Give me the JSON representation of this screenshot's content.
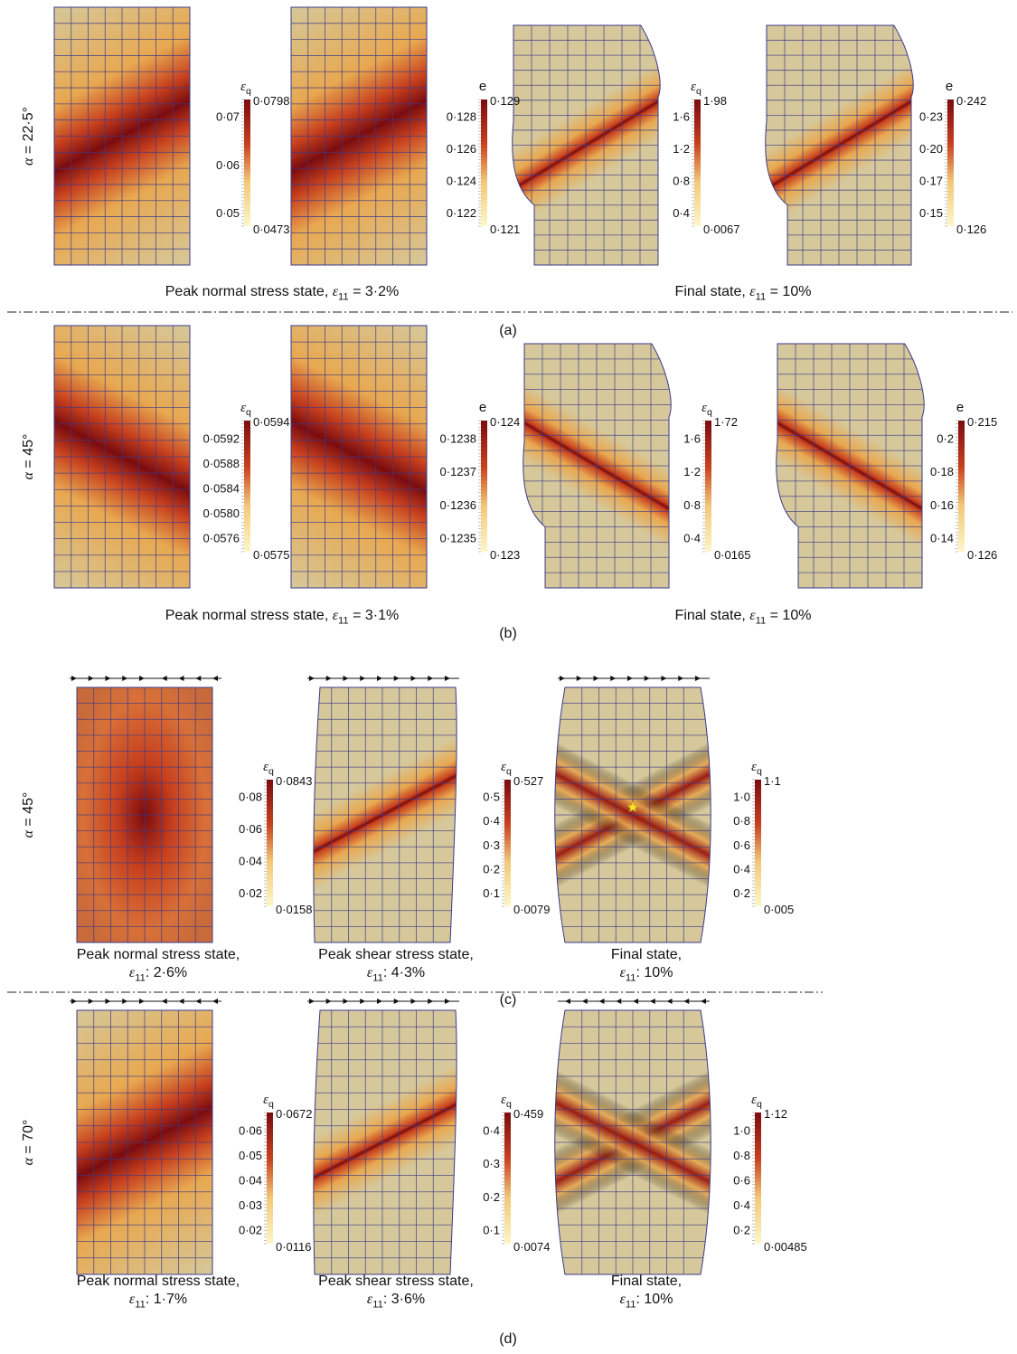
{
  "palette": {
    "base": "#d6c89a",
    "light": "#fdf6c8",
    "mid": "#e8a850",
    "strong": "#c7401e",
    "dark": "#7a0c10",
    "mesh": "#3a3a8a"
  },
  "panels": [
    {
      "label": "(a)",
      "row_label": "α = 22·5°",
      "group_captions": [
        {
          "text": "Peak normal stress state, ε11 = 3·2%"
        },
        {
          "text": "Final state, ε11 = 10%"
        }
      ],
      "plots": [
        {
          "shape": "rect",
          "band": "diag-up-wide",
          "colorbar": {
            "symbol": "εq",
            "max": "0·0798",
            "min": "0·0473",
            "ticks": [
              "0·07",
              "0·06",
              "0·05"
            ]
          }
        },
        {
          "shape": "rect",
          "band": "diag-up-wide",
          "colorbar": {
            "symbol": "e",
            "max": "0·129",
            "min": "0·121",
            "ticks": [
              "0·128",
              "0·126",
              "0·124",
              "0·122"
            ]
          }
        },
        {
          "shape": "deformed",
          "band": "diag-up",
          "colorbar": {
            "symbol": "εq",
            "max": "1·98",
            "min": "0·0067",
            "ticks": [
              "1·6",
              "1·2",
              "0·8",
              "0·4"
            ]
          }
        },
        {
          "shape": "deformed",
          "band": "diag-up",
          "colorbar": {
            "symbol": "e",
            "max": "0·242",
            "min": "0·126",
            "ticks": [
              "0·23",
              "0·20",
              "0·17",
              "0·15"
            ]
          }
        }
      ]
    },
    {
      "label": "(b)",
      "row_label": "α = 45°",
      "group_captions": [
        {
          "text": "Peak normal stress state, ε11 = 3·1%"
        },
        {
          "text": "Final state, ε11 = 10%"
        }
      ],
      "plots": [
        {
          "shape": "rect",
          "band": "diag-down-wide",
          "colorbar": {
            "symbol": "εq",
            "max": "0·0594",
            "min": "0·0575",
            "ticks": [
              "0·0592",
              "0·0588",
              "0·0584",
              "0·0580",
              "0·0576"
            ]
          }
        },
        {
          "shape": "rect",
          "band": "diag-down-wide",
          "colorbar": {
            "symbol": "e",
            "max": "0·124",
            "min": "0·123",
            "ticks": [
              "0·1238",
              "0·1237",
              "0·1236",
              "0·1235"
            ]
          }
        },
        {
          "shape": "deformed",
          "band": "diag-down",
          "colorbar": {
            "symbol": "εq",
            "max": "1·72",
            "min": "0·0165",
            "ticks": [
              "1·6",
              "1·2",
              "0·8",
              "0·4"
            ]
          }
        },
        {
          "shape": "deformed",
          "band": "diag-down",
          "colorbar": {
            "symbol": "e",
            "max": "0·215",
            "min": "0·126",
            "ticks": [
              "0·2",
              "0·18",
              "0·16",
              "0·14"
            ]
          }
        }
      ]
    },
    {
      "label": "(c)",
      "row_label": "α = 45°",
      "plots": [
        {
          "shape": "rect",
          "band": "x-center",
          "arrows": "converge",
          "caption": [
            "Peak normal stress state,",
            "ε11: 2·6%"
          ],
          "colorbar": {
            "symbol": "εq",
            "max": "0·0843",
            "min": "0·0158",
            "ticks": [
              "0·08",
              "0·06",
              "0·04",
              "0·02"
            ]
          }
        },
        {
          "shape": "skew",
          "band": "diag-up",
          "arrows": "right",
          "caption": [
            "Peak shear stress state,",
            "ε11: 4·3%"
          ],
          "colorbar": {
            "symbol": "εq",
            "max": "0·527",
            "min": "0·0079",
            "ticks": [
              "0·5",
              "0·4",
              "0·3",
              "0·2",
              "0·1"
            ]
          }
        },
        {
          "shape": "barrel",
          "band": "x",
          "arrows": "right",
          "star": true,
          "caption": [
            "Final state,",
            "ε11: 10%"
          ],
          "colorbar": {
            "symbol": "εq",
            "max": "1·1",
            "min": "0·005",
            "ticks": [
              "1·0",
              "0·8",
              "0·6",
              "0·4",
              "0·2"
            ]
          }
        }
      ]
    },
    {
      "label": "(d)",
      "row_label": "α = 70°",
      "plots": [
        {
          "shape": "rect",
          "band": "diag-up-wide",
          "arrows": "converge",
          "caption": [
            "Peak normal stress state,",
            "ε11: 1·7%"
          ],
          "colorbar": {
            "symbol": "εq",
            "max": "0·0672",
            "min": "0·0116",
            "ticks": [
              "0·06",
              "0·05",
              "0·04",
              "0·03",
              "0·02"
            ]
          }
        },
        {
          "shape": "skew",
          "band": "diag-up",
          "arrows": "right",
          "caption": [
            "Peak shear stress state,",
            "ε11: 3·6%"
          ],
          "colorbar": {
            "symbol": "εq",
            "max": "0·459",
            "min": "0·0074",
            "ticks": [
              "0·4",
              "0·3",
              "0·2",
              "0·1"
            ]
          }
        },
        {
          "shape": "barrel",
          "band": "x",
          "arrows": "left",
          "caption": [
            "Final state,",
            "ε11: 10%"
          ],
          "colorbar": {
            "symbol": "εq",
            "max": "1·12",
            "min": "0·00485",
            "ticks": [
              "1·0",
              "0·8",
              "0·6",
              "0·4",
              "0·2"
            ]
          }
        }
      ]
    }
  ]
}
